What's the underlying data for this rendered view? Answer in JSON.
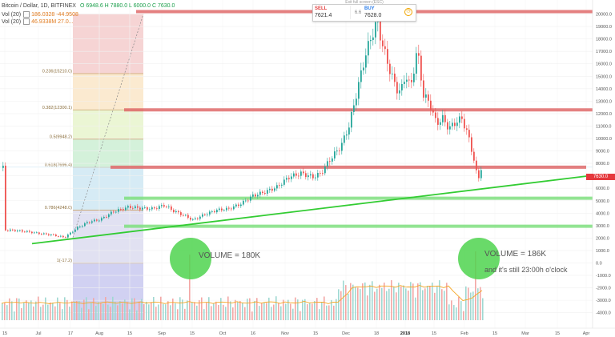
{
  "legend": {
    "symbol": "Bitcoin / Dollar, 1D, BITFINEX",
    "ohlc": "O 6948.6  H 7880.0  L 6000.0  C 7630.0",
    "ind1_name": "Vol (20)",
    "ind1_vals": "186.0328  -44.9508",
    "ind2_name": "Vol (20)",
    "ind2_vals": "46.9338M  27.0..."
  },
  "trade_panel": {
    "hint": "Exit full screen (ESC)",
    "sell_label": "SELL",
    "sell_price": "7621.4",
    "spread": "6.6",
    "buy_label": "BUY",
    "buy_price": "7628.0"
  },
  "current_price_label": "7630.0",
  "annotations": {
    "volume_left": "VOLUME = 180K",
    "volume_right": "VOLUME = 186K",
    "note_right": "and it's still 23:00h o'clock"
  },
  "colors": {
    "up": "#26a69a",
    "down": "#ef5350",
    "support_lines": "#7fe07f",
    "resistance_lines": "#e06a6a",
    "trendline": "#33cc33",
    "volume_ma": "#f5a623",
    "volume_circle": "#4fd44f"
  },
  "chart_data": {
    "type": "candlestick",
    "x_ticks": [
      "15",
      "Jul",
      "17",
      "Aug",
      "15",
      "Sep",
      "15",
      "Oct",
      "16",
      "Nov",
      "15",
      "Dec",
      "18",
      "2018",
      "15",
      "Feb",
      "15",
      "Mar",
      "15",
      "Apr"
    ],
    "y_ticks": [
      20000,
      19000,
      18000,
      17000,
      16000,
      15000,
      14000,
      13000,
      12000,
      11000,
      10000,
      9000,
      8000,
      7000,
      6000,
      5000,
      4000,
      3000,
      2000,
      1000,
      0,
      -1000,
      -2000,
      -3000,
      -4000
    ],
    "ylim": [
      -4600,
      21000
    ],
    "fibonacci": [
      {
        "label": "0.236(15210.0)",
        "value": 15210
      },
      {
        "label": "0.382(12300.1)",
        "value": 12300
      },
      {
        "label": "0.5(9948.2)",
        "value": 9948
      },
      {
        "label": "0.618(7696.4)",
        "value": 7696
      },
      {
        "label": "0.786(4248.0)",
        "value": 4248
      },
      {
        "label": "1(-17.2)",
        "value": -17
      }
    ],
    "horizontal_levels": [
      {
        "value": 20200,
        "color": "resistance"
      },
      {
        "value": 12300,
        "color": "resistance"
      },
      {
        "value": 7696,
        "color": "resistance"
      },
      {
        "value": 5200,
        "color": "support"
      },
      {
        "value": 2950,
        "color": "support"
      }
    ],
    "trendline": {
      "from": {
        "x_index": 40,
        "value": 1550
      },
      "to": {
        "x_index": 742,
        "value": 7050
      }
    },
    "price_path": [
      {
        "x": 5,
        "v": 2650
      },
      {
        "x": 20,
        "v": 2600
      },
      {
        "x": 35,
        "v": 2500
      },
      {
        "x": 50,
        "v": 2350
      },
      {
        "x": 65,
        "v": 2250
      },
      {
        "x": 80,
        "v": 2050
      },
      {
        "x": 95,
        "v": 2800
      },
      {
        "x": 110,
        "v": 3300
      },
      {
        "x": 125,
        "v": 3500
      },
      {
        "x": 140,
        "v": 4100
      },
      {
        "x": 160,
        "v": 4500
      },
      {
        "x": 175,
        "v": 4400
      },
      {
        "x": 190,
        "v": 4350
      },
      {
        "x": 205,
        "v": 4650
      },
      {
        "x": 215,
        "v": 4200
      },
      {
        "x": 230,
        "v": 3800
      },
      {
        "x": 240,
        "v": 3450
      },
      {
        "x": 255,
        "v": 3900
      },
      {
        "x": 270,
        "v": 4250
      },
      {
        "x": 285,
        "v": 4350
      },
      {
        "x": 300,
        "v": 4750
      },
      {
        "x": 315,
        "v": 5400
      },
      {
        "x": 330,
        "v": 5700
      },
      {
        "x": 345,
        "v": 6100
      },
      {
        "x": 360,
        "v": 6900
      },
      {
        "x": 375,
        "v": 7200
      },
      {
        "x": 390,
        "v": 6900
      },
      {
        "x": 400,
        "v": 7200
      },
      {
        "x": 410,
        "v": 8200
      },
      {
        "x": 425,
        "v": 9400
      },
      {
        "x": 435,
        "v": 11000
      },
      {
        "x": 445,
        "v": 13800
      },
      {
        "x": 455,
        "v": 16600
      },
      {
        "x": 463,
        "v": 18200
      },
      {
        "x": 470,
        "v": 19400
      },
      {
        "x": 478,
        "v": 17200
      },
      {
        "x": 486,
        "v": 15500
      },
      {
        "x": 494,
        "v": 14000
      },
      {
        "x": 500,
        "v": 13800
      },
      {
        "x": 506,
        "v": 15200
      },
      {
        "x": 512,
        "v": 14000
      },
      {
        "x": 520,
        "v": 17200
      },
      {
        "x": 528,
        "v": 13500
      },
      {
        "x": 536,
        "v": 12800
      },
      {
        "x": 544,
        "v": 11200
      },
      {
        "x": 552,
        "v": 11600
      },
      {
        "x": 560,
        "v": 10800
      },
      {
        "x": 568,
        "v": 11300
      },
      {
        "x": 576,
        "v": 11600
      },
      {
        "x": 584,
        "v": 10200
      },
      {
        "x": 590,
        "v": 8600
      },
      {
        "x": 596,
        "v": 6600
      },
      {
        "x": 600,
        "v": 7630
      }
    ]
  }
}
